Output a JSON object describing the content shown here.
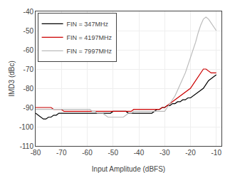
{
  "chart_data": {
    "type": "line",
    "xlabel": "Input Amplitude (dBFS)",
    "ylabel": "IMD3 (dBc)",
    "x": [
      -80,
      -79,
      -78,
      -77,
      -76,
      -75,
      -74,
      -73,
      -72,
      -71,
      -70,
      -69,
      -68,
      -67,
      -66,
      -65,
      -64,
      -63,
      -62,
      -61,
      -60,
      -59,
      -58,
      -57,
      -56,
      -55,
      -54,
      -53,
      -52,
      -51,
      -50,
      -49,
      -48,
      -47,
      -46,
      -45,
      -44,
      -43,
      -42,
      -41,
      -40,
      -39,
      -38,
      -37,
      -36,
      -35,
      -34,
      -33,
      -32,
      -31,
      -30,
      -29,
      -28,
      -27,
      -26,
      -25,
      -24,
      -23,
      -22,
      -21,
      -20,
      -19,
      -18,
      -17,
      -16,
      -15,
      -14,
      -13,
      -12,
      -11,
      -10
    ],
    "series": [
      {
        "name": "FIN = 347MHz",
        "color": "#000000",
        "values": [
          -93,
          -94,
          -95,
          -96,
          -96,
          -95,
          -95,
          -94,
          -94,
          -93,
          -93,
          -93,
          -93,
          -93,
          -93,
          -93,
          -93,
          -93,
          -93,
          -93,
          -93,
          -93,
          -93,
          -93,
          -93,
          -93,
          -93,
          -93,
          -93,
          -93,
          -92,
          -92,
          -92,
          -92,
          -92,
          -92,
          -93,
          -93,
          -93,
          -93,
          -93,
          -93,
          -93,
          -93,
          -93,
          -93,
          -92,
          -91,
          -91,
          -90,
          -90,
          -89,
          -89,
          -88,
          -88,
          -87,
          -87,
          -86,
          -86,
          -85,
          -85,
          -84,
          -83,
          -82,
          -81,
          -80,
          -78,
          -76,
          -75,
          -74,
          -73
        ]
      },
      {
        "name": "FIN = 4197MHz",
        "color": "#cc0000",
        "values": [
          -90,
          -90,
          -90,
          -90,
          -90,
          -90,
          -90,
          -91,
          -91,
          -91,
          -91,
          -92,
          -92,
          -92,
          -92,
          -92,
          -92,
          -92,
          -92,
          -92,
          -92,
          -92,
          -92,
          -92,
          -92,
          -92,
          -92,
          -92,
          -92,
          -92,
          -92,
          -92,
          -92,
          -92,
          -92,
          -92,
          -92,
          -92,
          -91,
          -91,
          -91,
          -91,
          -91,
          -91,
          -91,
          -91,
          -91,
          -91,
          -91,
          -90,
          -90,
          -89,
          -88,
          -87,
          -86,
          -85,
          -84,
          -83,
          -82,
          -81,
          -80,
          -78,
          -76,
          -74,
          -72,
          -70,
          -70,
          -71,
          -72,
          -72,
          -72
        ]
      },
      {
        "name": "FIN = 7997MHz",
        "color": "#bbbbbb",
        "values": [
          -91,
          -91,
          -91,
          -91,
          -91,
          -91,
          -91,
          -91,
          -91,
          -91,
          -91,
          -91,
          -91,
          -91,
          -91,
          -91,
          -91,
          -91,
          -91,
          -91,
          -91,
          -91,
          -92,
          -92,
          -93,
          -93,
          -93,
          -94,
          -95,
          -95,
          -95,
          -95,
          -95,
          -95,
          -95,
          -94,
          -93,
          -93,
          -92,
          -92,
          -92,
          -92,
          -92,
          -92,
          -92,
          -92,
          -92,
          -92,
          -92,
          -92,
          -92,
          -90,
          -88,
          -86,
          -84,
          -81,
          -78,
          -75,
          -72,
          -68,
          -64,
          -60,
          -56,
          -51,
          -47,
          -44,
          -43,
          -44,
          -46,
          -48,
          -50
        ]
      }
    ],
    "xlim": [
      -80,
      -8
    ],
    "ylim": [
      -110,
      -40
    ],
    "xticks": [
      -80,
      -70,
      -60,
      -50,
      -40,
      -30,
      -20,
      -10
    ],
    "yticks": [
      -110,
      -100,
      -90,
      -80,
      -70,
      -60,
      -50,
      -40
    ],
    "grid": true,
    "legend": "upper left"
  }
}
